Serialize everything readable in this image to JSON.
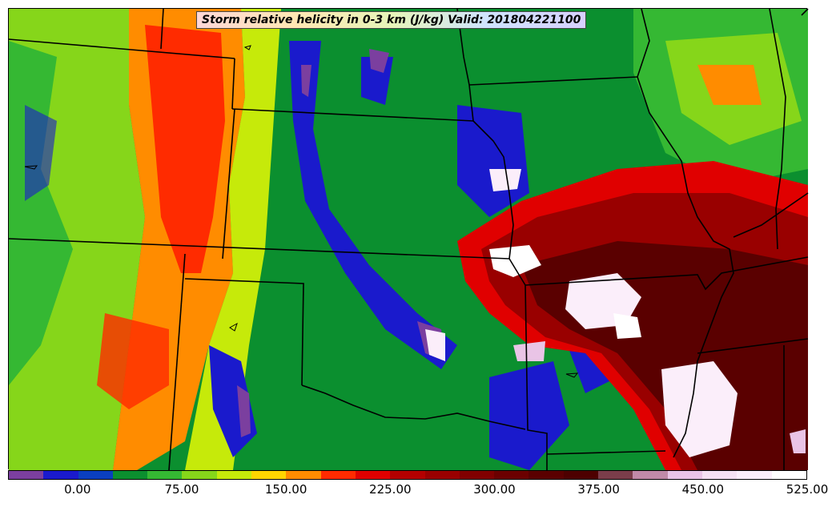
{
  "title": "Storm relative helicity in 0-3 km (J/kg) Valid: 201804221100",
  "colorbar": {
    "colors": [
      "#7b3f9f",
      "#1a1acc",
      "#0a3fbf",
      "#0b8f2f",
      "#35b833",
      "#86d61a",
      "#c6ea0a",
      "#ffd500",
      "#ff8c00",
      "#ff2b00",
      "#e00000",
      "#b30000",
      "#990000",
      "#800000",
      "#6b0000",
      "#5a0000",
      "#4d0000",
      "#7a3d4a",
      "#c08aa8",
      "#e9c4e6",
      "#f5e1f3",
      "#fbeefa",
      "#ffffff"
    ],
    "ticks": [
      "0.00",
      "75.00",
      "150.00",
      "225.00",
      "300.00",
      "375.00",
      "450.00",
      "525.00"
    ]
  },
  "map": {
    "background": "#0b8f2f"
  }
}
